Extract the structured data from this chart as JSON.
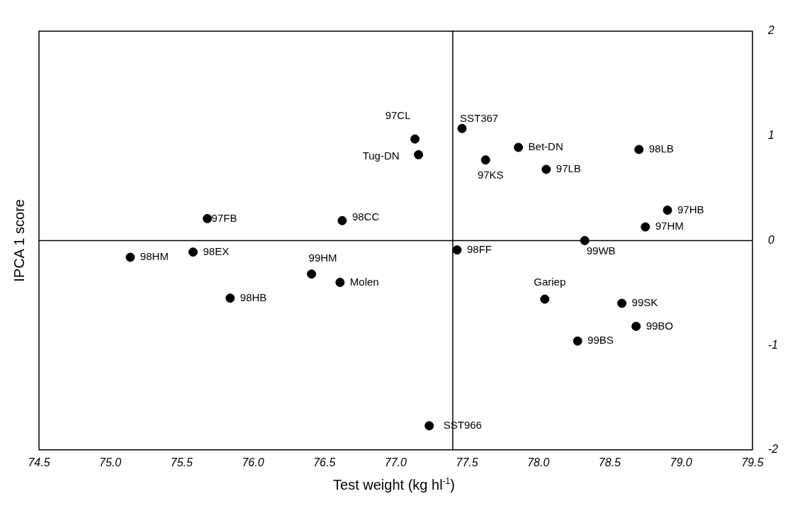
{
  "chart_data": {
    "type": "scatter",
    "xlabel": "Test weight (kg hl$^{-1}$)",
    "ylabel": "IPCA 1 score",
    "x": [
      77.135,
      77.16,
      77.465,
      77.86,
      77.63,
      78.055,
      78.705,
      78.905,
      78.75,
      78.325,
      77.43,
      78.045,
      78.585,
      78.685,
      78.275,
      77.235,
      75.68,
      76.625,
      75.14,
      75.58,
      76.41,
      76.61,
      75.84
    ],
    "series": [
      {
        "color": "#000000",
        "values": [
          0.97,
          0.82,
          1.07,
          0.89,
          0.77,
          0.68,
          0.87,
          0.29,
          0.13,
          0.0,
          -0.09,
          -0.56,
          -0.6,
          -0.82,
          -0.96,
          -1.77,
          0.21,
          0.19,
          -0.16,
          -0.11,
          -0.32,
          -0.4,
          -0.55
        ]
      }
    ],
    "annotations": [
      {
        "text": "97CL",
        "x": 77.135,
        "y": 0.97
      },
      {
        "text": "Tug-DN",
        "x": 77.16,
        "y": 0.82
      },
      {
        "text": "SST367",
        "x": 77.465,
        "y": 1.07
      },
      {
        "text": "Bet-DN",
        "x": 77.86,
        "y": 0.89
      },
      {
        "text": "97KS",
        "x": 77.63,
        "y": 0.77
      },
      {
        "text": "97LB",
        "x": 78.055,
        "y": 0.68
      },
      {
        "text": "98LB",
        "x": 78.705,
        "y": 0.87
      },
      {
        "text": "97HB",
        "x": 78.905,
        "y": 0.29
      },
      {
        "text": "97HM",
        "x": 78.75,
        "y": 0.13
      },
      {
        "text": "99WB",
        "x": 78.325,
        "y": 0.0
      },
      {
        "text": "98FF",
        "x": 77.43,
        "y": -0.09
      },
      {
        "text": "Gariep",
        "x": 78.045,
        "y": -0.56
      },
      {
        "text": "99SK",
        "x": 78.585,
        "y": -0.6
      },
      {
        "text": "99BO",
        "x": 78.685,
        "y": -0.82
      },
      {
        "text": "99BS",
        "x": 78.275,
        "y": -0.96
      },
      {
        "text": "SST966",
        "x": 77.235,
        "y": -1.77
      },
      {
        "text": "97FB",
        "x": 75.68,
        "y": 0.21
      },
      {
        "text": "98CC",
        "x": 76.625,
        "y": 0.19
      },
      {
        "text": "98HM",
        "x": 75.14,
        "y": -0.16
      },
      {
        "text": "98EX",
        "x": 75.58,
        "y": -0.11
      },
      {
        "text": "99HM",
        "x": 76.41,
        "y": -0.32
      },
      {
        "text": "Molen",
        "x": 76.61,
        "y": -0.4
      },
      {
        "text": "98HB",
        "x": 75.84,
        "y": -0.55
      }
    ],
    "xlim": [
      74.5,
      79.5
    ],
    "xticks": [
      74.5,
      {
        "value": 75,
        "label": "75.0"
      },
      75.5,
      {
        "value": 76,
        "label": "76.0"
      },
      76.5,
      {
        "value": 77,
        "label": "77.0"
      },
      77.5,
      {
        "value": 78,
        "label": "78.0"
      },
      78.5,
      {
        "value": 79,
        "label": "79.0"
      },
      79.5
    ],
    "ylim": [
      -2,
      2
    ],
    "yticks": [
      -2,
      -1,
      0,
      1,
      2
    ],
    "ref_lines": [
      {
        "axis": "x",
        "value": 77.4
      },
      {
        "axis": "y",
        "value": 0
      }
    ],
    "marker": "circle",
    "grid": false,
    "legend": false
  }
}
